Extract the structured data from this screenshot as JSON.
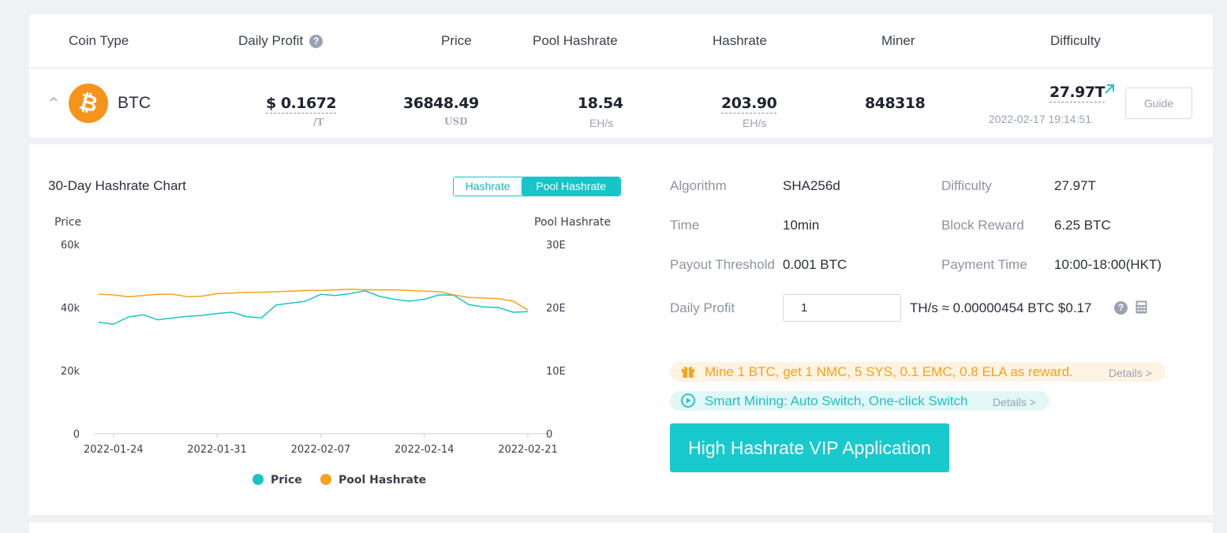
{
  "header": {
    "coin_type": "Coin Type",
    "daily_profit": "Daily Profit",
    "price": "Price",
    "pool_hashrate": "Pool Hashrate",
    "hashrate": "Hashrate",
    "miner": "Miner",
    "difficulty": "Difficulty",
    "help_glyph": "?"
  },
  "coin": {
    "symbol_glyph": "₿",
    "name": "BTC",
    "daily_profit_value": "$ 0.1672",
    "daily_profit_unit": "/T",
    "price_value": "36848.49",
    "price_unit": "USD",
    "pool_hashrate_value": "18.54",
    "pool_hashrate_unit": "EH/s",
    "hashrate_value": "203.90",
    "hashrate_unit": "EH/s",
    "miner_value": "848318",
    "difficulty_value": "27.97T",
    "difficulty_time": "2022-02-17  19:14:51",
    "guide_label": "Guide",
    "arrow_icon": "arrow-up-right-icon",
    "brand_color": "#f7931a"
  },
  "chart": {
    "title": "30-Day Hashrate Chart",
    "toggle_hashrate": "Hashrate",
    "toggle_pool_hashrate": "Pool Hashrate"
  },
  "chart_data": {
    "type": "line",
    "left_axis_label": "Price",
    "right_axis_label": "Pool Hashrate",
    "left_ticks": [
      "0",
      "20k",
      "40k",
      "60k"
    ],
    "right_ticks": [
      "0",
      "10E",
      "20E",
      "30E"
    ],
    "left_ylim": [
      0,
      60000
    ],
    "right_ylim": [
      0,
      30
    ],
    "x_tick_labels": [
      "2022-01-24",
      "2022-01-31",
      "2022-02-07",
      "2022-02-14",
      "2022-02-21"
    ],
    "x": [
      "2022-01-23",
      "2022-01-24",
      "2022-01-25",
      "2022-01-26",
      "2022-01-27",
      "2022-01-28",
      "2022-01-29",
      "2022-01-30",
      "2022-01-31",
      "2022-02-01",
      "2022-02-02",
      "2022-02-03",
      "2022-02-04",
      "2022-02-05",
      "2022-02-06",
      "2022-02-07",
      "2022-02-08",
      "2022-02-09",
      "2022-02-10",
      "2022-02-11",
      "2022-02-12",
      "2022-02-13",
      "2022-02-14",
      "2022-02-15",
      "2022-02-16",
      "2022-02-17",
      "2022-02-18",
      "2022-02-19",
      "2022-02-20",
      "2022-02-21"
    ],
    "series": [
      {
        "name": "Price",
        "axis": "left",
        "color": "#18c4c8",
        "values": [
          35300,
          34700,
          37000,
          37700,
          36100,
          36700,
          37200,
          37500,
          38100,
          38500,
          37100,
          36700,
          40800,
          41400,
          42000,
          44200,
          43800,
          44400,
          45300,
          43500,
          42600,
          42000,
          42600,
          44000,
          43900,
          40900,
          40200,
          40000,
          38500,
          38700
        ]
      },
      {
        "name": "Pool Hashrate",
        "axis": "right",
        "color": "#f5a31a",
        "values": [
          22.1,
          22.0,
          21.7,
          21.9,
          22.1,
          22.1,
          21.7,
          21.8,
          22.2,
          22.3,
          22.4,
          22.4,
          22.5,
          22.6,
          22.7,
          22.7,
          22.8,
          22.9,
          22.8,
          22.8,
          22.8,
          22.7,
          22.6,
          22.5,
          22.0,
          21.6,
          21.5,
          21.4,
          21.0,
          19.6
        ]
      }
    ],
    "legend_position": "bottom"
  },
  "info": {
    "algorithm_label": "Algorithm",
    "algorithm_value": "SHA256d",
    "difficulty_label": "Difficulty",
    "difficulty_value": "27.97T",
    "time_label": "Time",
    "time_value": "10min",
    "block_reward_label": "Block Reward",
    "block_reward_value": "6.25 BTC",
    "payout_threshold_label": "Payout Threshold",
    "payout_threshold_value": "0.001 BTC",
    "payment_time_label": "Payment Time",
    "payment_time_value": "10:00-18:00(HKT)",
    "daily_profit_label": "Daily Profit",
    "daily_profit_input_value": "1",
    "daily_profit_result": "TH/s ≈ 0.00000454 BTC  $0.17",
    "help_glyph": "?",
    "calculator_icon": "calculator-icon"
  },
  "promos": {
    "reward_text": "Mine 1 BTC, get 1 NMC, 5 SYS, 0.1 EMC, 0.8 ELA as reward.",
    "reward_details": "Details >",
    "reward_icon": "gift-icon",
    "reward_color": "#f5a31a",
    "smart_text": "Smart Mining: Auto Switch, One-click Switch",
    "smart_details": "Details >",
    "smart_icon": "play-icon",
    "smart_color": "#18c4c8"
  },
  "vip_button": "High Hashrate VIP Application"
}
